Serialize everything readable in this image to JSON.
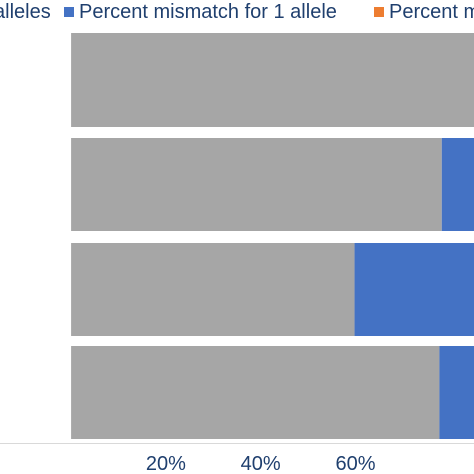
{
  "chart_data": {
    "type": "bar",
    "orientation": "horizontal",
    "stacked": true,
    "normalized": true,
    "legend": "top",
    "grid": false,
    "series": [
      {
        "name": "alleles",
        "name_display": "alleles",
        "color": "#a6a6a6",
        "values": [
          100,
          78.2,
          59.8,
          77.7
        ]
      },
      {
        "name": "Percent mismatch for 1 allele",
        "color": "#4472c4",
        "values": [
          0,
          21.8,
          40.2,
          22.3
        ]
      },
      {
        "name": "Percent mismatch",
        "name_display": "Percent m",
        "color": "#ed7d31",
        "values": [
          0,
          0,
          0,
          0
        ]
      }
    ],
    "xlim": [
      -15,
      85
    ],
    "x_ticks": [
      20,
      40,
      60
    ],
    "x_tick_labels": [
      "20%",
      "40%",
      "60%"
    ]
  }
}
